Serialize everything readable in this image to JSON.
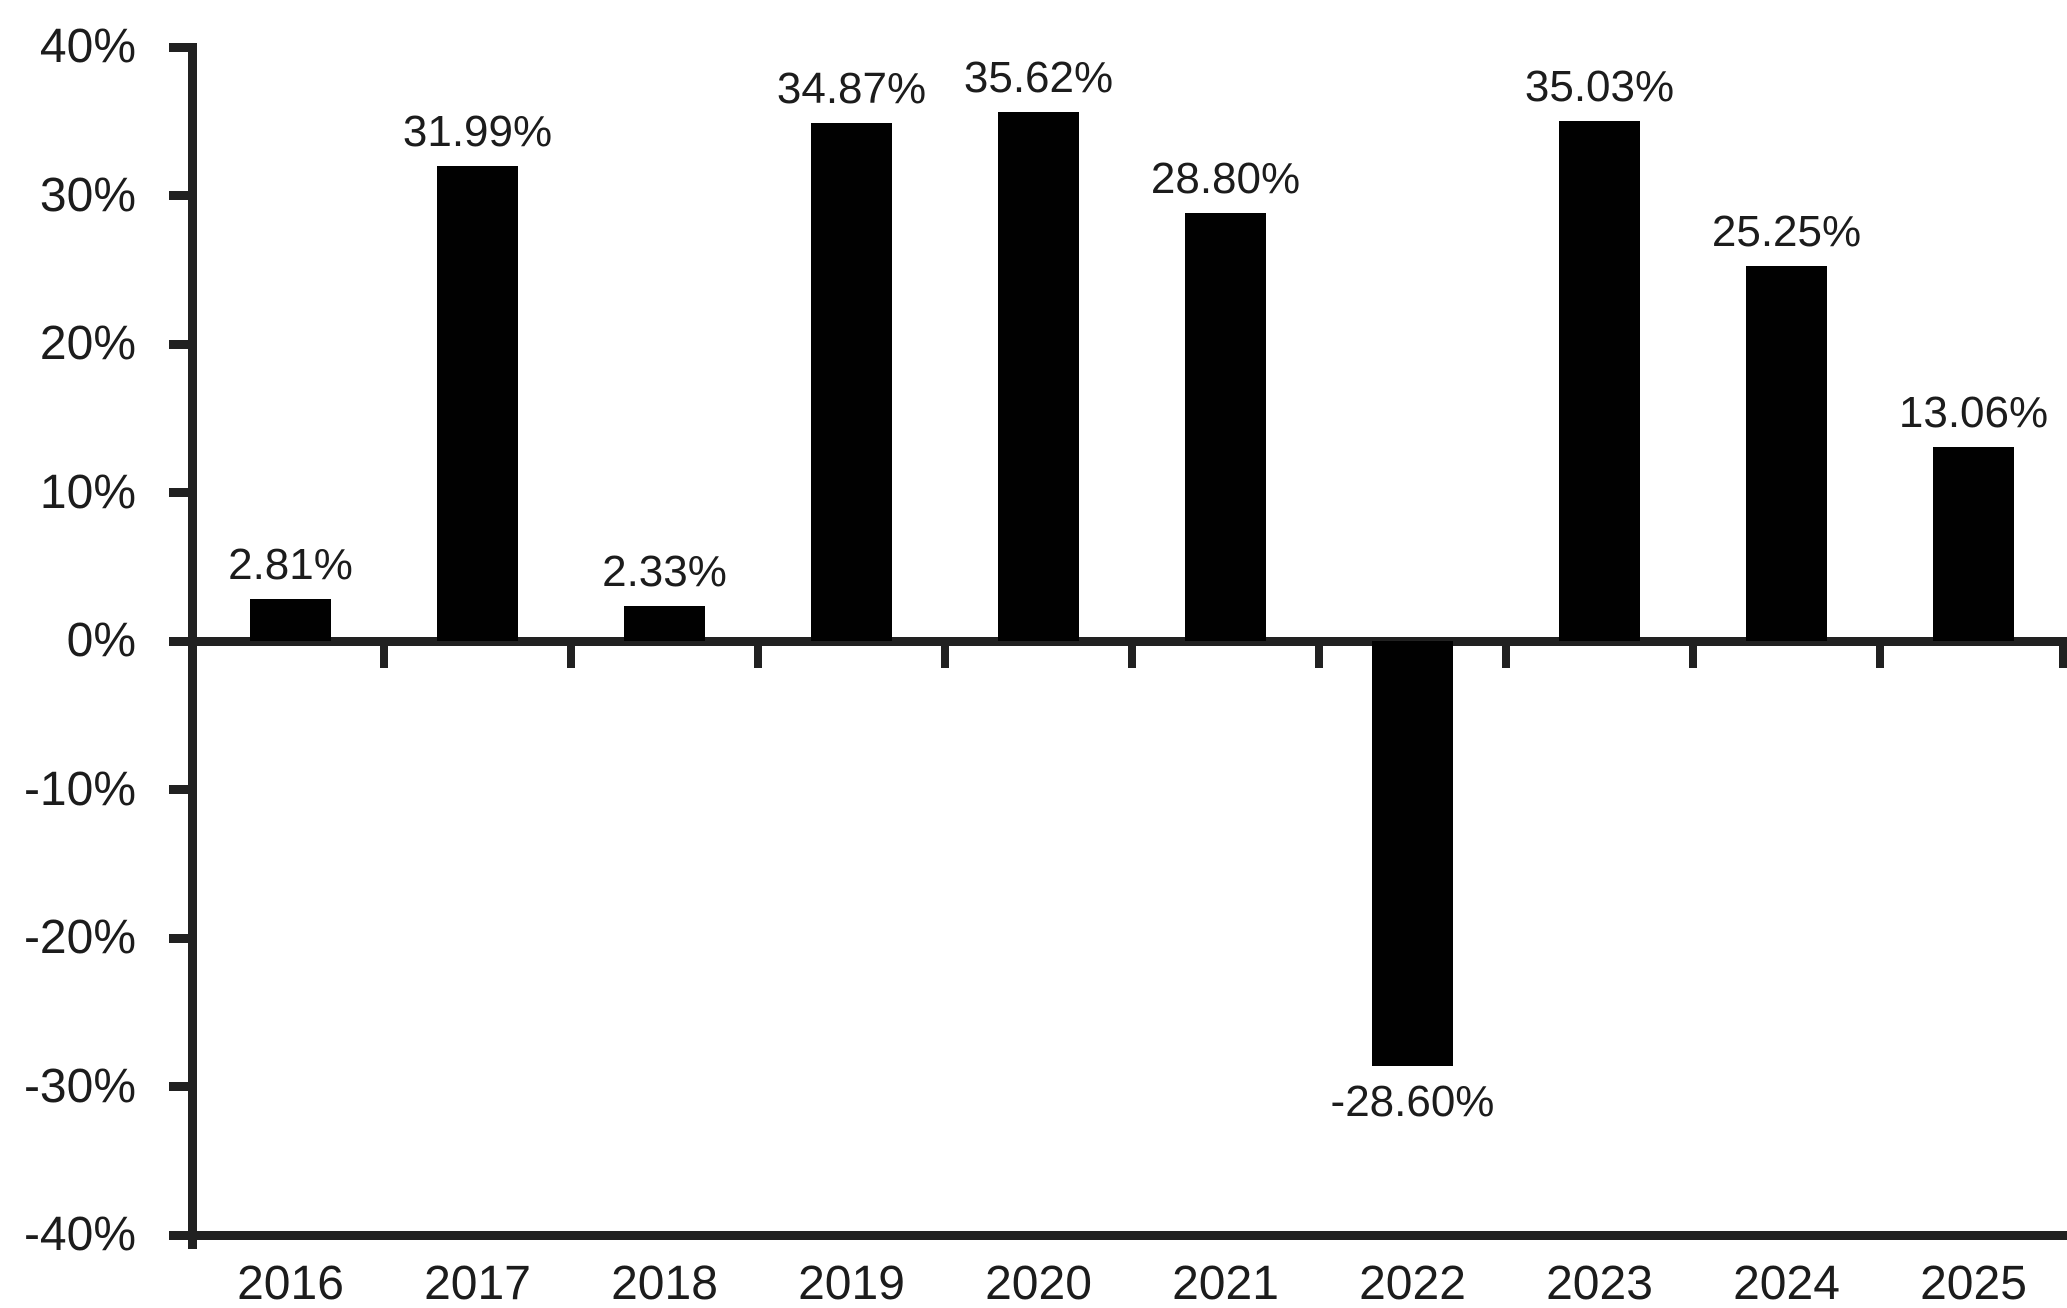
{
  "chart_data": {
    "type": "bar",
    "categories": [
      "2016",
      "2017",
      "2018",
      "2019",
      "2020",
      "2021",
      "2022",
      "2023",
      "2024",
      "2025"
    ],
    "values": [
      2.81,
      31.99,
      2.33,
      34.87,
      35.62,
      28.8,
      -28.6,
      35.03,
      25.25,
      13.06
    ],
    "value_labels": [
      "2.81%",
      "31.99%",
      "2.33%",
      "34.87%",
      "35.62%",
      "28.80%",
      "-28.60%",
      "35.03%",
      "25.25%",
      "13.06%"
    ],
    "xlabel": "",
    "ylabel": "",
    "y_axis": {
      "min": -40,
      "max": 40,
      "step": 10,
      "tick_labels": [
        "40%",
        "30%",
        "20%",
        "10%",
        "0%",
        "-10%",
        "-20%",
        "-30%",
        "-40%"
      ]
    },
    "grid": false,
    "legend": false,
    "bar_color": "#010101",
    "axis_color": "#212121",
    "text_color": "#1c1c1c",
    "background_color": "#ffffff"
  }
}
